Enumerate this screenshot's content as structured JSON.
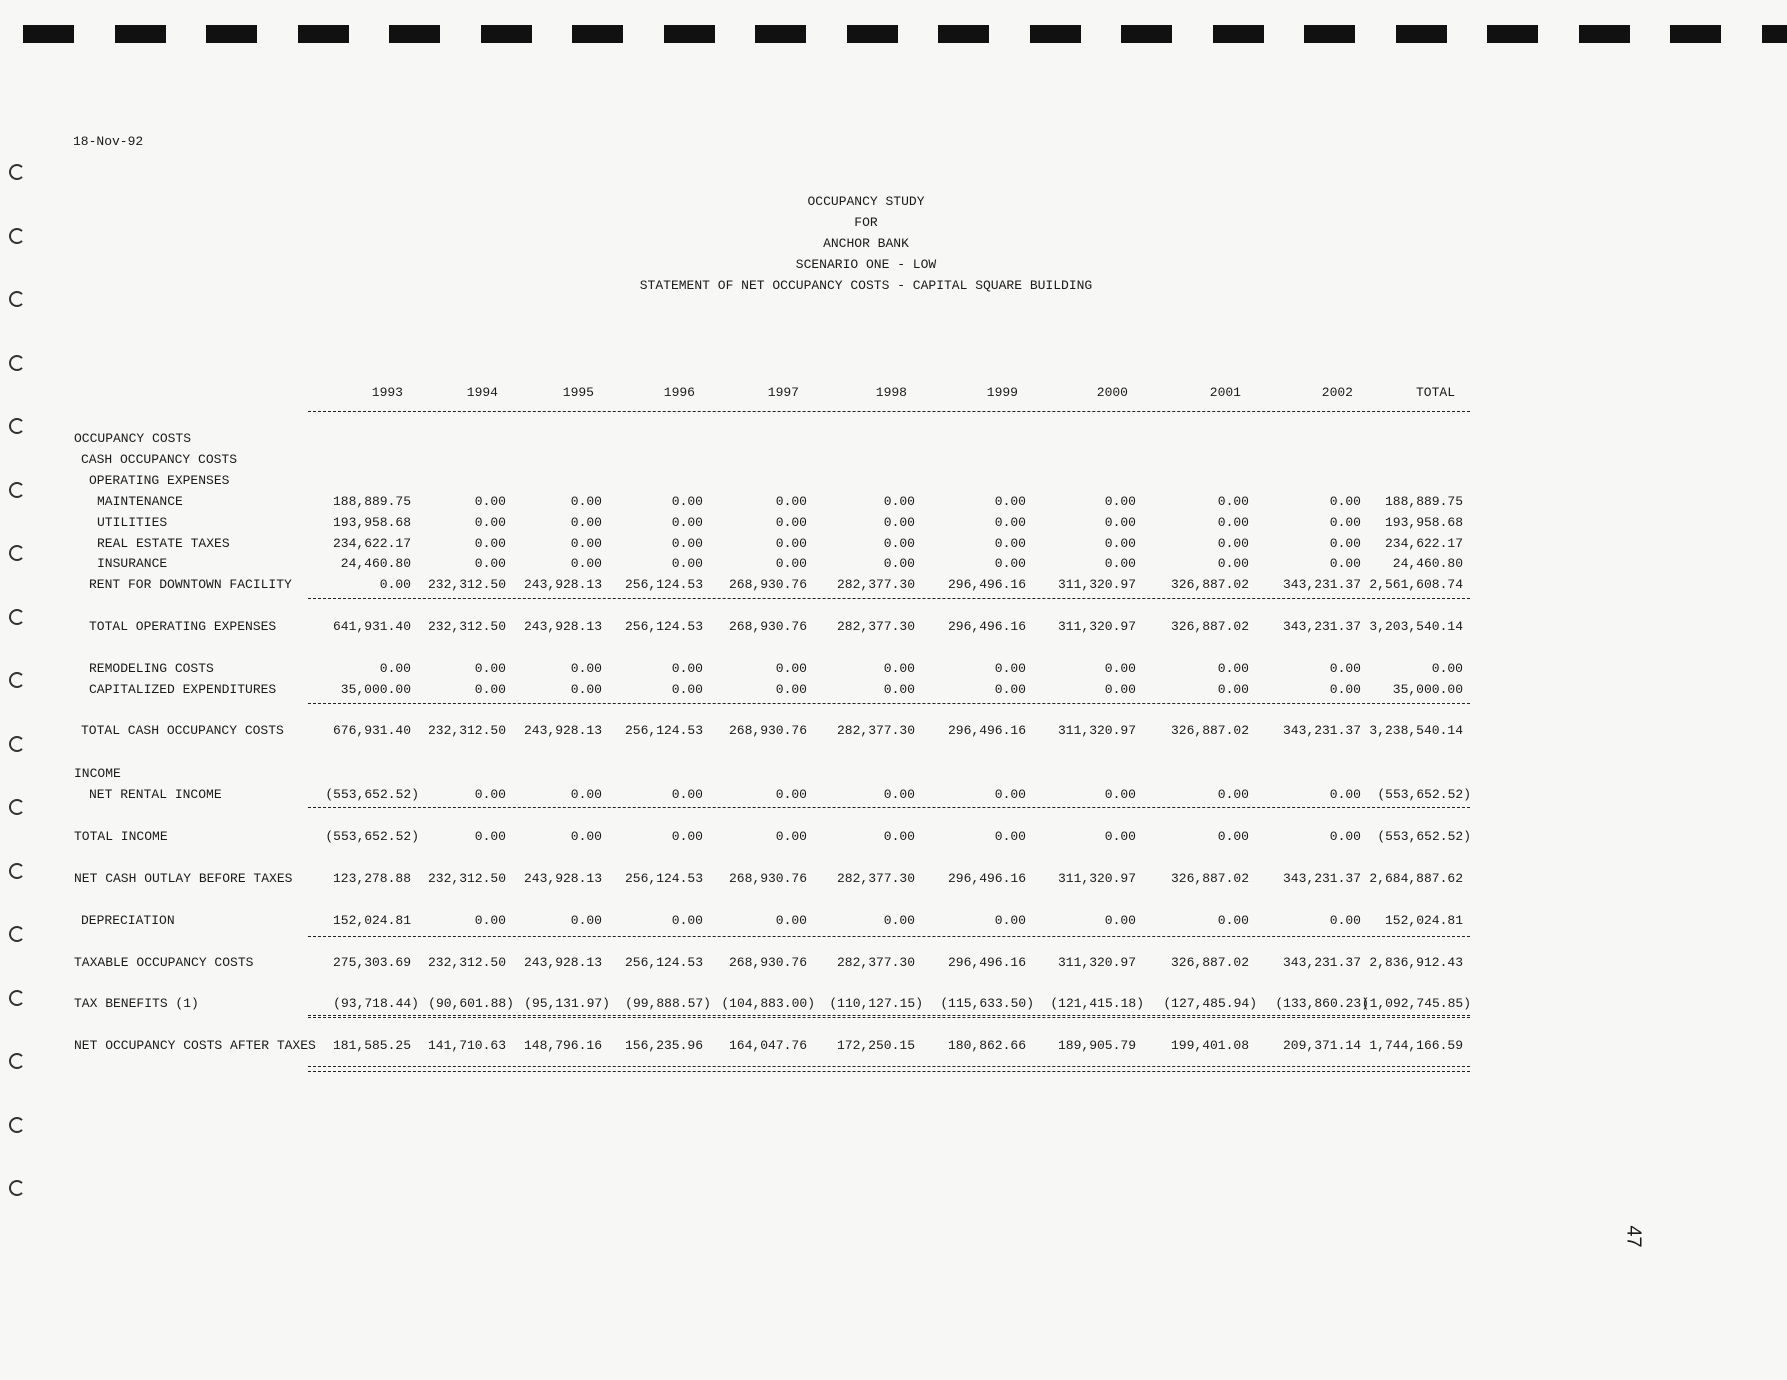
{
  "date": "18-Nov-92",
  "title_lines": [
    "OCCUPANCY STUDY",
    "FOR",
    "ANCHOR BANK",
    "SCENARIO ONE - LOW",
    "STATEMENT OF NET OCCUPANCY COSTS - CAPITAL SQUARE BUILDING"
  ],
  "columns": [
    "1993",
    "1994",
    "1995",
    "1996",
    "1997",
    "1998",
    "1999",
    "2000",
    "2001",
    "2002",
    "TOTAL"
  ],
  "rows": [
    {
      "label": "OCCUPANCY COSTS",
      "indent": 0,
      "values": []
    },
    {
      "label": "CASH OCCUPANCY COSTS",
      "indent": 1,
      "values": []
    },
    {
      "label": "OPERATING EXPENSES",
      "indent": 2,
      "values": []
    },
    {
      "label": "MAINTENANCE",
      "indent": 3,
      "values": [
        "188,889.75",
        "0.00",
        "0.00",
        "0.00",
        "0.00",
        "0.00",
        "0.00",
        "0.00",
        "0.00",
        "0.00",
        "188,889.75"
      ]
    },
    {
      "label": "UTILITIES",
      "indent": 3,
      "values": [
        "193,958.68",
        "0.00",
        "0.00",
        "0.00",
        "0.00",
        "0.00",
        "0.00",
        "0.00",
        "0.00",
        "0.00",
        "193,958.68"
      ]
    },
    {
      "label": "REAL ESTATE TAXES",
      "indent": 3,
      "values": [
        "234,622.17",
        "0.00",
        "0.00",
        "0.00",
        "0.00",
        "0.00",
        "0.00",
        "0.00",
        "0.00",
        "0.00",
        "234,622.17"
      ]
    },
    {
      "label": "INSURANCE",
      "indent": 3,
      "values": [
        "24,460.80",
        "0.00",
        "0.00",
        "0.00",
        "0.00",
        "0.00",
        "0.00",
        "0.00",
        "0.00",
        "0.00",
        "24,460.80"
      ]
    },
    {
      "label": "RENT FOR DOWNTOWN FACILITY",
      "indent": 2,
      "values": [
        "0.00",
        "232,312.50",
        "243,928.13",
        "256,124.53",
        "268,930.76",
        "282,377.30",
        "296,496.16",
        "311,320.97",
        "326,887.02",
        "343,231.37",
        "2,561,608.74"
      ]
    },
    {
      "label": "TOTAL OPERATING EXPENSES",
      "indent": 2,
      "values": [
        "641,931.40",
        "232,312.50",
        "243,928.13",
        "256,124.53",
        "268,930.76",
        "282,377.30",
        "296,496.16",
        "311,320.97",
        "326,887.02",
        "343,231.37",
        "3,203,540.14"
      ]
    },
    {
      "label": "REMODELING COSTS",
      "indent": 2,
      "values": [
        "0.00",
        "0.00",
        "0.00",
        "0.00",
        "0.00",
        "0.00",
        "0.00",
        "0.00",
        "0.00",
        "0.00",
        "0.00"
      ]
    },
    {
      "label": "CAPITALIZED EXPENDITURES",
      "indent": 2,
      "values": [
        "35,000.00",
        "0.00",
        "0.00",
        "0.00",
        "0.00",
        "0.00",
        "0.00",
        "0.00",
        "0.00",
        "0.00",
        "35,000.00"
      ]
    },
    {
      "label": "TOTAL CASH OCCUPANCY COSTS",
      "indent": 1,
      "values": [
        "676,931.40",
        "232,312.50",
        "243,928.13",
        "256,124.53",
        "268,930.76",
        "282,377.30",
        "296,496.16",
        "311,320.97",
        "326,887.02",
        "343,231.37",
        "3,238,540.14"
      ]
    },
    {
      "label": "INCOME",
      "indent": 0,
      "values": []
    },
    {
      "label": "NET RENTAL INCOME",
      "indent": 2,
      "values": [
        "(553,652.52)",
        "0.00",
        "0.00",
        "0.00",
        "0.00",
        "0.00",
        "0.00",
        "0.00",
        "0.00",
        "0.00",
        "(553,652.52)"
      ]
    },
    {
      "label": "TOTAL INCOME",
      "indent": 0,
      "values": [
        "(553,652.52)",
        "0.00",
        "0.00",
        "0.00",
        "0.00",
        "0.00",
        "0.00",
        "0.00",
        "0.00",
        "0.00",
        "(553,652.52)"
      ]
    },
    {
      "label": "NET CASH OUTLAY BEFORE TAXES",
      "indent": 0,
      "values": [
        "123,278.88",
        "232,312.50",
        "243,928.13",
        "256,124.53",
        "268,930.76",
        "282,377.30",
        "296,496.16",
        "311,320.97",
        "326,887.02",
        "343,231.37",
        "2,684,887.62"
      ]
    },
    {
      "label": "DEPRECIATION",
      "indent": 1,
      "values": [
        "152,024.81",
        "0.00",
        "0.00",
        "0.00",
        "0.00",
        "0.00",
        "0.00",
        "0.00",
        "0.00",
        "0.00",
        "152,024.81"
      ]
    },
    {
      "label": "TAXABLE OCCUPANCY COSTS",
      "indent": 0,
      "values": [
        "275,303.69",
        "232,312.50",
        "243,928.13",
        "256,124.53",
        "268,930.76",
        "282,377.30",
        "296,496.16",
        "311,320.97",
        "326,887.02",
        "343,231.37",
        "2,836,912.43"
      ]
    },
    {
      "label": "TAX BENEFITS (1)",
      "indent": 0,
      "values": [
        "(93,718.44)",
        "(90,601.88)",
        "(95,131.97)",
        "(99,888.57)",
        "(104,883.00)",
        "(110,127.15)",
        "(115,633.50)",
        "(121,415.18)",
        "(127,485.94)",
        "(133,860.23)",
        "(1,092,745.85)"
      ]
    },
    {
      "label": "NET OCCUPANCY COSTS AFTER TAXES",
      "indent": 0,
      "values": [
        "181,585.25",
        "141,710.63",
        "148,796.16",
        "156,235.96",
        "164,047.76",
        "172,250.15",
        "180,862.66",
        "189,905.79",
        "199,401.08",
        "209,371.14",
        "1,744,166.59"
      ]
    }
  ],
  "page_number": "47"
}
